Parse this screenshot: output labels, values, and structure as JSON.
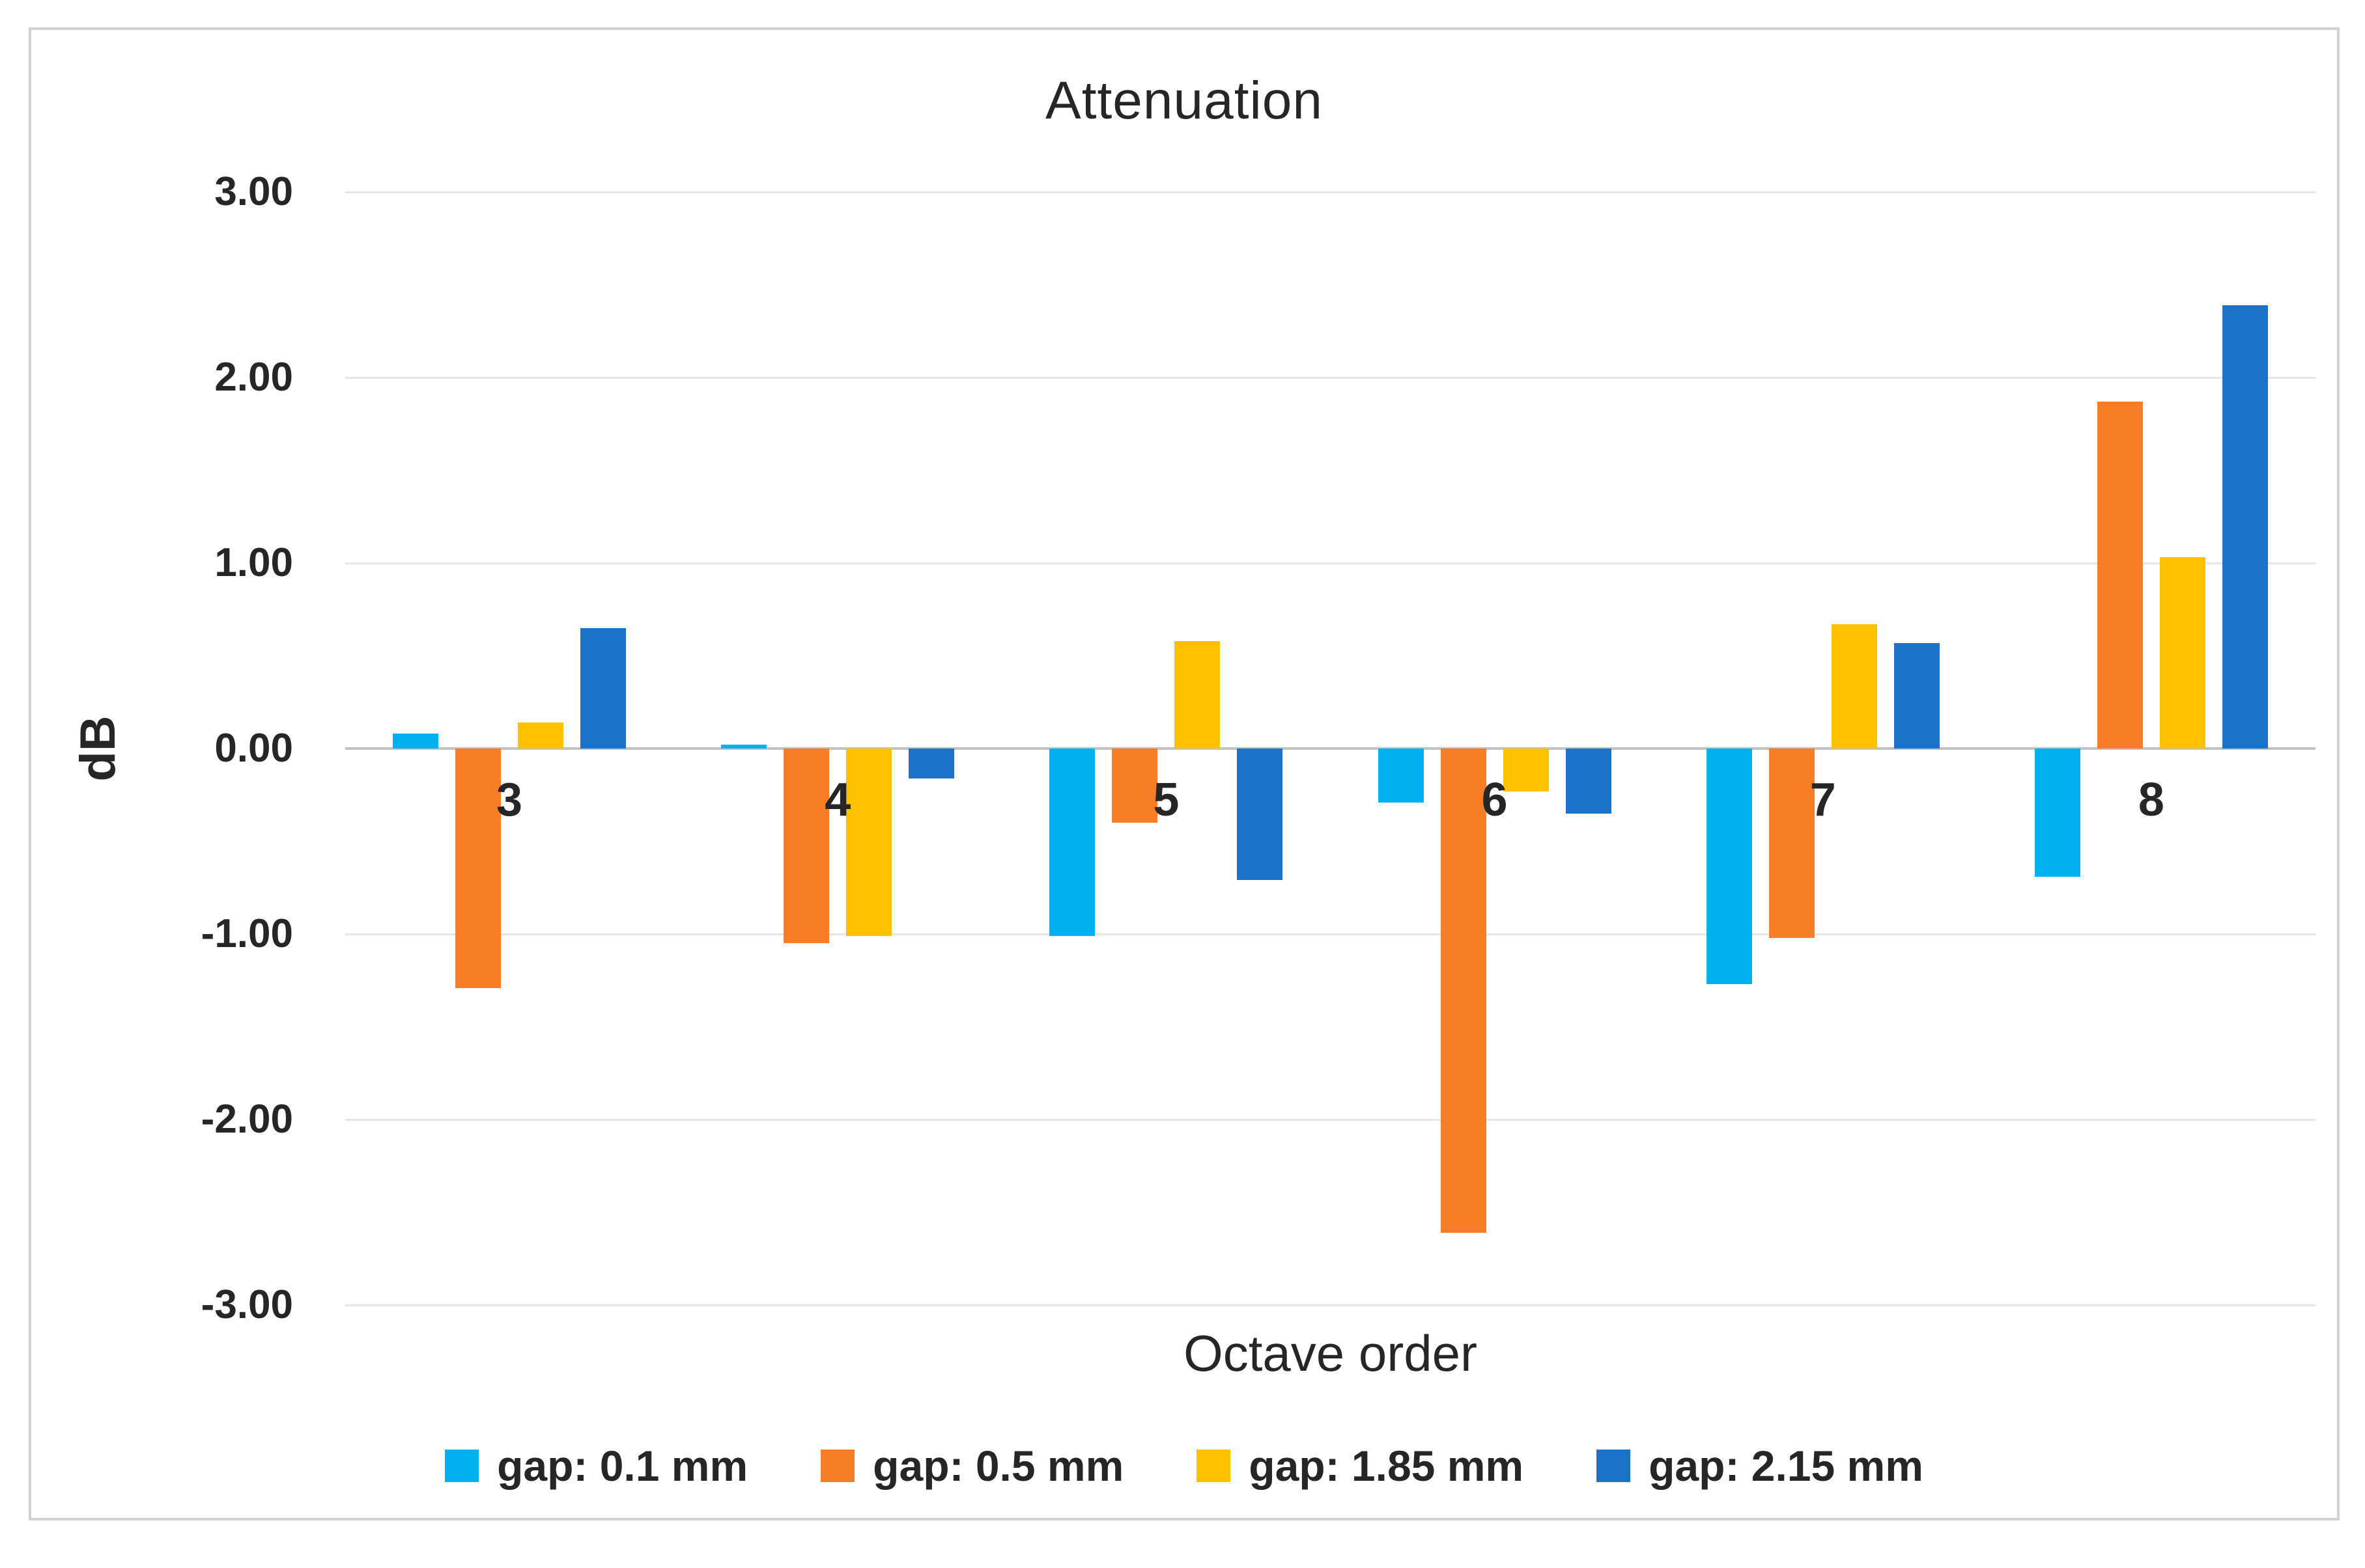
{
  "figure": {
    "title": "Attenuation",
    "y_axis_title": "dB",
    "x_axis_title": "Octave order"
  },
  "chart_data": {
    "type": "bar",
    "title": "Attenuation",
    "xlabel": "Octave order",
    "ylabel": "dB",
    "categories": [
      "3",
      "4",
      "5",
      "6",
      "7",
      "8"
    ],
    "series": [
      {
        "name": "gap: 0.1 mm",
        "color": "#00B0F0",
        "values": [
          0.08,
          0.02,
          -1.01,
          -0.29,
          -1.27,
          -0.69
        ]
      },
      {
        "name": "gap: 0.5 mm",
        "color": "#F87D27",
        "values": [
          -1.29,
          -1.05,
          -0.4,
          -2.61,
          -1.02,
          1.87
        ]
      },
      {
        "name": "gap: 1.85 mm",
        "color": "#FFC000",
        "values": [
          0.14,
          -1.01,
          0.58,
          -0.23,
          0.67,
          1.03
        ]
      },
      {
        "name": "gap: 2.15 mm",
        "color": "#1C72C9",
        "values": [
          0.65,
          -0.16,
          -0.71,
          -0.35,
          0.57,
          2.39
        ]
      }
    ],
    "ylim": [
      -3,
      3
    ],
    "ytick_step": 1,
    "ytick_labels": [
      "3.00",
      "2.00",
      "1.00",
      "0.00",
      "-1.00",
      "-2.00",
      "-3.00"
    ],
    "grid": true,
    "legend_position": "bottom"
  }
}
